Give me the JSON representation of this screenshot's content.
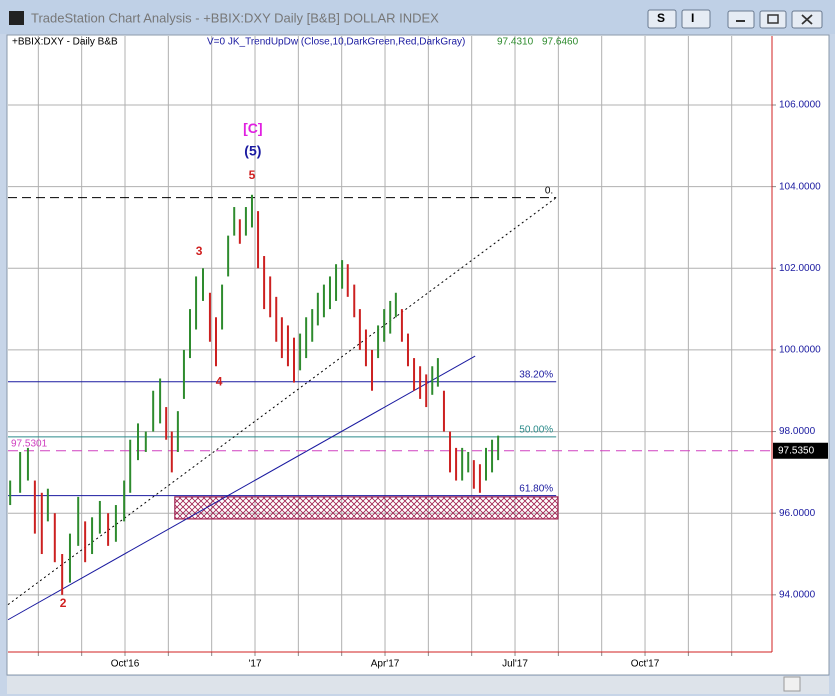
{
  "window": {
    "title": "TradeStation Chart Analysis - +BBIX:DXY Daily [B&B] DOLLAR INDEX",
    "buttons": [
      "S",
      "I"
    ]
  },
  "chart_data": {
    "type": "ohlc",
    "symbol_label": "+BBIX:DXY - Daily  B&B",
    "indicator_label": "V=0  JK_TrendUpDw (Close,10,DarkGreen,Red,DarkGray)",
    "indicator_values": [
      "97.4310",
      "97.6460"
    ],
    "up_color": "#2e8b2e",
    "down_color": "#cc2020",
    "x": [
      0.35,
      0.58,
      0.76,
      0.92,
      1.08,
      1.22,
      1.38,
      1.55,
      1.73,
      1.92,
      2.08,
      2.24,
      2.42,
      2.61,
      2.79,
      2.98,
      3.12,
      3.3,
      3.48,
      3.65,
      3.81,
      3.95,
      4.08,
      4.22,
      4.36,
      4.5,
      4.64,
      4.8,
      4.96,
      5.1,
      5.24,
      5.38,
      5.52,
      5.65,
      5.79,
      5.93,
      6.07,
      6.21,
      6.35,
      6.49,
      6.62,
      6.76,
      6.9,
      7.04,
      7.18,
      7.32,
      7.45,
      7.59,
      7.73,
      7.87,
      8.01,
      8.14,
      8.29,
      8.42,
      8.56,
      8.7,
      8.84,
      8.98,
      9.12,
      9.25,
      9.39,
      9.53,
      9.67,
      9.81,
      9.95,
      10.09,
      10.22,
      10.36,
      10.5,
      10.64,
      10.78,
      10.92,
      11.05,
      11.19,
      11.33,
      11.47,
      11.61
    ],
    "high": [
      96.8,
      97.5,
      97.6,
      96.8,
      96.5,
      96.6,
      96.0,
      95.0,
      95.5,
      96.4,
      95.8,
      95.9,
      96.3,
      96.0,
      96.2,
      96.8,
      97.8,
      98.2,
      98.0,
      99.0,
      99.3,
      98.6,
      98.0,
      98.5,
      100.0,
      101.0,
      101.8,
      102.0,
      101.4,
      100.8,
      101.6,
      102.8,
      103.5,
      103.2,
      103.5,
      103.8,
      103.4,
      102.3,
      101.8,
      101.3,
      100.8,
      100.6,
      100.3,
      100.4,
      100.8,
      101.0,
      101.4,
      101.6,
      101.8,
      102.1,
      102.2,
      102.1,
      101.6,
      101.0,
      100.5,
      100.0,
      100.6,
      101.0,
      101.2,
      101.4,
      101.0,
      100.4,
      99.8,
      99.6,
      99.4,
      99.6,
      99.8,
      99.0,
      98.0,
      97.6,
      97.6,
      97.5,
      97.3,
      97.2,
      97.6,
      97.8,
      97.9
    ],
    "low": [
      96.2,
      96.5,
      96.8,
      95.5,
      95.0,
      95.8,
      94.8,
      94.0,
      94.3,
      95.2,
      94.8,
      95.0,
      95.5,
      95.2,
      95.3,
      95.8,
      96.5,
      97.3,
      97.5,
      98.0,
      98.2,
      97.8,
      97.0,
      97.5,
      98.8,
      99.8,
      100.5,
      101.2,
      100.2,
      99.6,
      100.5,
      101.8,
      102.8,
      102.6,
      102.8,
      103.0,
      102.0,
      101.0,
      100.8,
      100.2,
      99.8,
      99.6,
      99.2,
      99.5,
      99.8,
      100.2,
      100.6,
      100.8,
      101.0,
      101.2,
      101.5,
      101.3,
      100.8,
      100.0,
      99.6,
      99.0,
      99.8,
      100.2,
      100.4,
      100.8,
      100.2,
      99.6,
      99.0,
      98.8,
      98.6,
      98.9,
      99.1,
      98.0,
      97.0,
      96.8,
      96.8,
      97.0,
      96.6,
      96.5,
      96.8,
      97.0,
      97.3
    ],
    "xlim": [
      0.3,
      17.93
    ],
    "xticks": [
      {
        "value": 1,
        "label": null
      },
      {
        "value": 2,
        "label": null
      },
      {
        "value": 3,
        "label": "Oct'16"
      },
      {
        "value": 4,
        "label": null
      },
      {
        "value": 5,
        "label": null
      },
      {
        "value": 6,
        "label": "'17"
      },
      {
        "value": 7,
        "label": null
      },
      {
        "value": 8,
        "label": null
      },
      {
        "value": 9,
        "label": "Apr'17"
      },
      {
        "value": 10,
        "label": null
      },
      {
        "value": 11,
        "label": null
      },
      {
        "value": 12,
        "label": "Jul'17"
      },
      {
        "value": 13,
        "label": null
      },
      {
        "value": 14,
        "label": null
      },
      {
        "value": 15,
        "label": "Oct'17"
      },
      {
        "value": 16,
        "label": null
      },
      {
        "value": 17,
        "label": null
      }
    ],
    "ylim": [
      92.6,
      107.69
    ],
    "yticks": [
      {
        "value": 94,
        "label": "94.0000"
      },
      {
        "value": 96,
        "label": "96.0000"
      },
      {
        "value": 98,
        "label": "98.0000"
      },
      {
        "value": 100,
        "label": "100.0000"
      },
      {
        "value": 102,
        "label": "102.0000"
      },
      {
        "value": 104,
        "label": "104.0000"
      },
      {
        "value": 106,
        "label": "106.0000"
      }
    ],
    "grid": true,
    "wave_labels": [
      {
        "text": "[C]",
        "x": 5.95,
        "y": 105.41,
        "color": "#e020e0"
      },
      {
        "text": "(5)",
        "x": 5.95,
        "y": 104.85,
        "color": "#1a1aa0"
      },
      {
        "text": "5",
        "x": 5.93,
        "y": 104.27,
        "color": "#d02020"
      },
      {
        "text": "3",
        "x": 4.71,
        "y": 102.4,
        "color": "#d02020"
      },
      {
        "text": "4",
        "x": 5.17,
        "y": 99.2,
        "color": "#d02020"
      },
      {
        "text": "2",
        "x": 1.57,
        "y": 93.78,
        "color": "#d02020"
      }
    ],
    "fib_levels": [
      {
        "label": "0.",
        "value": 103.73,
        "color": "#000000",
        "dashed": true
      },
      {
        "label": "38.20%",
        "value": 99.22,
        "color": "#1a1aa0",
        "dashed": false
      },
      {
        "label": "50.00%",
        "value": 97.87,
        "color": "#2a8a8a",
        "dashed": false
      },
      {
        "label": "61.80%",
        "value": 96.43,
        "color": "#1a1aa0",
        "dashed": false
      }
    ],
    "fib_x_end": 12.95,
    "zone": {
      "x": [
        4.15,
        12.99
      ],
      "y": [
        95.86,
        96.4
      ]
    },
    "trendlines": [
      {
        "points": [
          [
            0.3,
            93.39
          ],
          [
            11.08,
            99.85
          ]
        ],
        "color": "#1a1aa0",
        "dashed": false
      },
      {
        "points": [
          [
            0.3,
            93.76
          ],
          [
            12.95,
            103.73
          ]
        ],
        "color": "#000000",
        "dashed": true
      }
    ],
    "last_price": {
      "value": 97.53,
      "left_label": "97.5301",
      "right_label": "97.5350",
      "color": "#d040c0"
    }
  }
}
